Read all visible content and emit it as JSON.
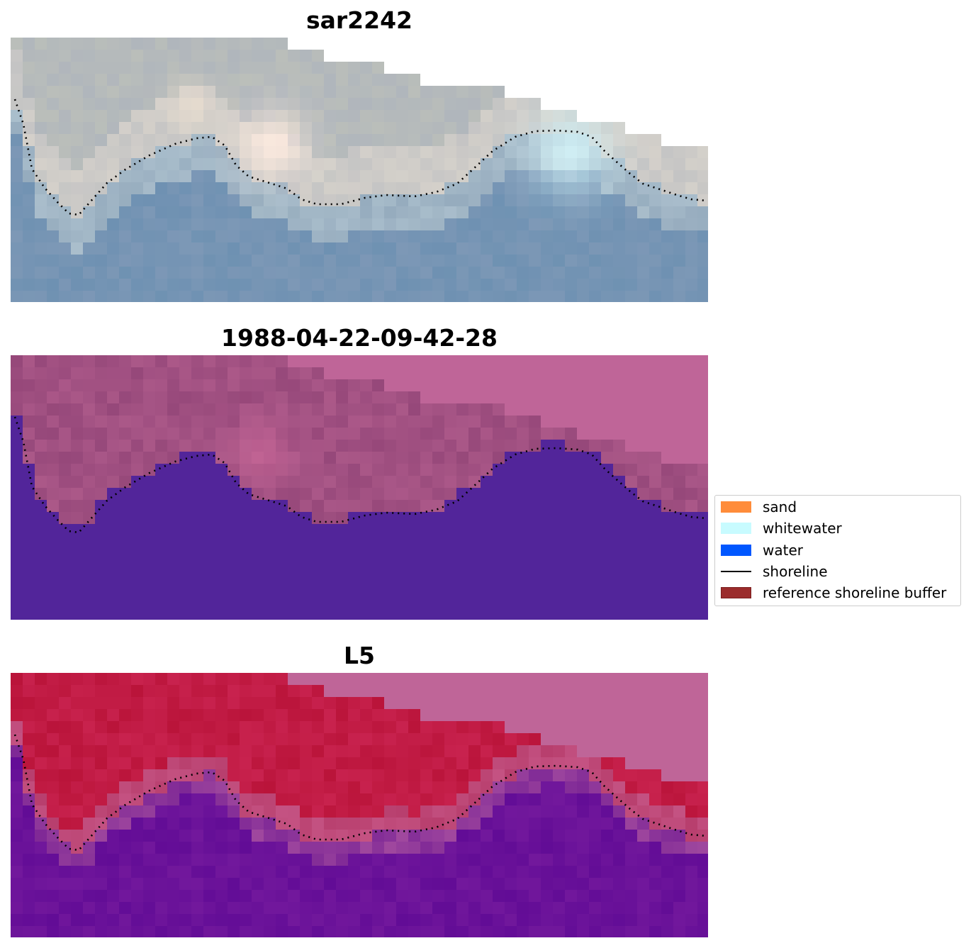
{
  "figure": {
    "panels": [
      {
        "title": "sar2242",
        "style": "rgb"
      },
      {
        "title": "1988-04-22-09-42-28",
        "style": "classified"
      },
      {
        "title": "L5",
        "style": "probability"
      }
    ],
    "legend": [
      {
        "label": "sand",
        "kind": "patch",
        "color": "#ff8c3a",
        "border": "none"
      },
      {
        "label": "whitewater",
        "kind": "patch",
        "color": "#c8fbff",
        "border": "none"
      },
      {
        "label": "water",
        "kind": "patch",
        "color": "#0057ff",
        "border": "none"
      },
      {
        "label": "shoreline",
        "kind": "line",
        "color": "#000000"
      },
      {
        "label": "reference shoreline buffer",
        "kind": "patch",
        "color": "#9b2c2c",
        "border": "#7a1e1e"
      }
    ],
    "colors": {
      "mask": "#bf6598",
      "classified_water": "#52259a",
      "shoreline_dots": "#000000"
    }
  }
}
